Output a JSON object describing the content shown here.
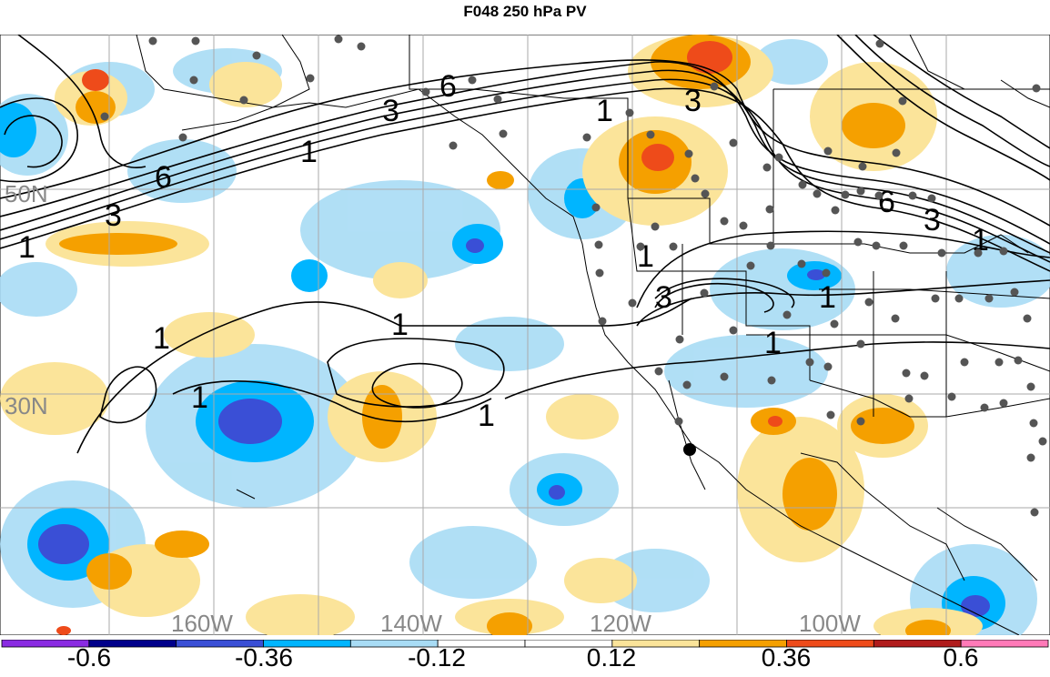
{
  "title": "F048 250 hPa PV",
  "lat_labels": [
    "50N",
    "30N"
  ],
  "lon_labels": [
    "160W",
    "140W",
    "120W",
    "100W"
  ],
  "contour_labels": [
    "6",
    "3",
    "1"
  ],
  "colorbar": {
    "ticks": [
      "-0.6",
      "-0.36",
      "-0.12",
      "0.12",
      "0.36",
      "0.6"
    ],
    "colors": [
      "#8a2be2",
      "#00008b",
      "#3a4fd6",
      "#00b5ff",
      "#a8dcf5",
      "#ffffff",
      "#ffffff",
      "#fbe49a",
      "#f5a000",
      "#ee4b1a",
      "#b01c1c",
      "#ff7ab8"
    ]
  }
}
